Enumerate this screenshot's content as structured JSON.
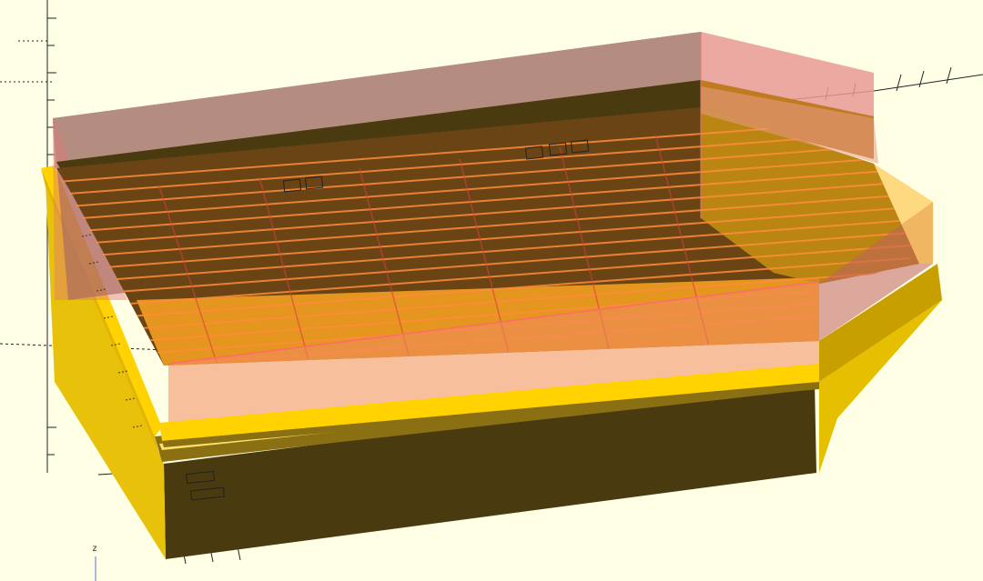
{
  "viewport": {
    "background": "#ffffe5",
    "axis_color": "#222222",
    "axis_labels": {
      "z": "z"
    }
  },
  "model": {
    "body_color": "#ffd200",
    "shade_color": "#4a3a10",
    "highlight_color": "#f2a020",
    "ghost_color": "#e07878",
    "rib_color": "#ff8c3a",
    "grid_line_color": "#d84040"
  }
}
